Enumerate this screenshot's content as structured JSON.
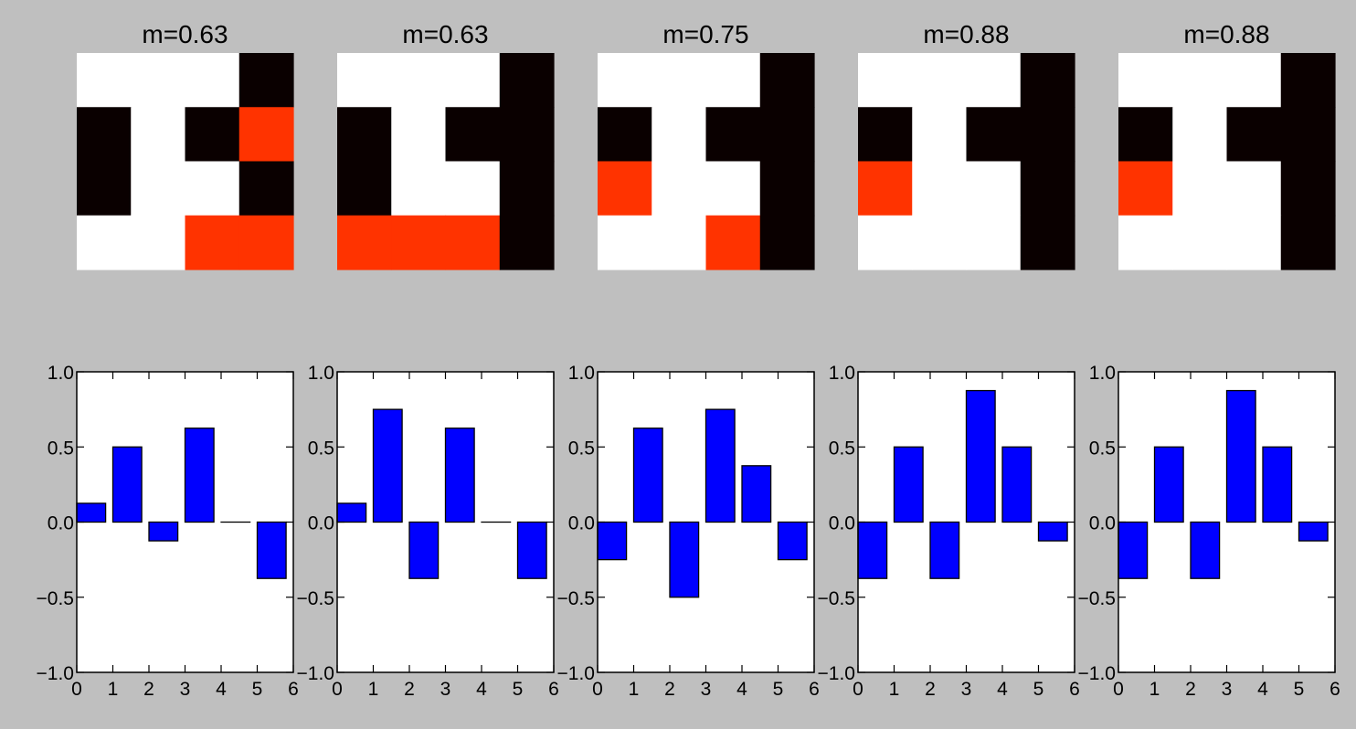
{
  "colors": {
    "figure_bg": "#bfbfbf",
    "white": "#ffffff",
    "black": "#0a0000",
    "red": "#ff3300",
    "bar": "#0000ff"
  },
  "chart_data": [
    {
      "type": "heatmap",
      "title": "m=0.63",
      "grid": [
        [
          "w",
          "w",
          "w",
          "k"
        ],
        [
          "k",
          "w",
          "k",
          "r"
        ],
        [
          "k",
          "w",
          "w",
          "k"
        ],
        [
          "w",
          "w",
          "r",
          "r"
        ]
      ]
    },
    {
      "type": "heatmap",
      "title": "m=0.63",
      "grid": [
        [
          "w",
          "w",
          "w",
          "k"
        ],
        [
          "k",
          "w",
          "k",
          "k"
        ],
        [
          "k",
          "w",
          "w",
          "k"
        ],
        [
          "r",
          "r",
          "r",
          "k"
        ]
      ]
    },
    {
      "type": "heatmap",
      "title": "m=0.75",
      "grid": [
        [
          "w",
          "w",
          "w",
          "k"
        ],
        [
          "k",
          "w",
          "k",
          "k"
        ],
        [
          "r",
          "w",
          "w",
          "k"
        ],
        [
          "w",
          "w",
          "r",
          "k"
        ]
      ]
    },
    {
      "type": "heatmap",
      "title": "m=0.88",
      "grid": [
        [
          "w",
          "w",
          "w",
          "k"
        ],
        [
          "k",
          "w",
          "k",
          "k"
        ],
        [
          "r",
          "w",
          "w",
          "k"
        ],
        [
          "w",
          "w",
          "w",
          "k"
        ]
      ]
    },
    {
      "type": "heatmap",
      "title": "m=0.88",
      "grid": [
        [
          "w",
          "w",
          "w",
          "k"
        ],
        [
          "k",
          "w",
          "k",
          "k"
        ],
        [
          "r",
          "w",
          "w",
          "k"
        ],
        [
          "w",
          "w",
          "w",
          "k"
        ]
      ]
    },
    {
      "type": "bar",
      "categories": [
        0,
        1,
        2,
        3,
        4,
        5
      ],
      "values": [
        0.125,
        0.5,
        -0.125,
        0.625,
        0.0,
        -0.375
      ],
      "xlim": [
        0,
        6
      ],
      "ylim": [
        -1,
        1
      ],
      "xticks": [
        "0",
        "1",
        "2",
        "3",
        "4",
        "5",
        "6"
      ],
      "yticks": [
        "1.0",
        "0.5",
        "0.0",
        "−0.5",
        "−1.0"
      ],
      "ytick_values": [
        1.0,
        0.5,
        0.0,
        -0.5,
        -1.0
      ]
    },
    {
      "type": "bar",
      "categories": [
        0,
        1,
        2,
        3,
        4,
        5
      ],
      "values": [
        0.125,
        0.75,
        -0.375,
        0.625,
        0.0,
        -0.375
      ],
      "xlim": [
        0,
        6
      ],
      "ylim": [
        -1,
        1
      ],
      "xticks": [
        "0",
        "1",
        "2",
        "3",
        "4",
        "5",
        "6"
      ],
      "yticks": [
        "1.0",
        "0.5",
        "0.0",
        "−0.5",
        "−1.0"
      ],
      "ytick_values": [
        1.0,
        0.5,
        0.0,
        -0.5,
        -1.0
      ]
    },
    {
      "type": "bar",
      "categories": [
        0,
        1,
        2,
        3,
        4,
        5
      ],
      "values": [
        -0.25,
        0.625,
        -0.5,
        0.75,
        0.375,
        -0.25
      ],
      "xlim": [
        0,
        6
      ],
      "ylim": [
        -1,
        1
      ],
      "xticks": [
        "0",
        "1",
        "2",
        "3",
        "4",
        "5",
        "6"
      ],
      "yticks": [
        "1.0",
        "0.5",
        "0.0",
        "−0.5",
        "−1.0"
      ],
      "ytick_values": [
        1.0,
        0.5,
        0.0,
        -0.5,
        -1.0
      ]
    },
    {
      "type": "bar",
      "categories": [
        0,
        1,
        2,
        3,
        4,
        5
      ],
      "values": [
        -0.375,
        0.5,
        -0.375,
        0.875,
        0.5,
        -0.125
      ],
      "xlim": [
        0,
        6
      ],
      "ylim": [
        -1,
        1
      ],
      "xticks": [
        "0",
        "1",
        "2",
        "3",
        "4",
        "5",
        "6"
      ],
      "yticks": [
        "1.0",
        "0.5",
        "0.0",
        "−0.5",
        "−1.0"
      ],
      "ytick_values": [
        1.0,
        0.5,
        0.0,
        -0.5,
        -1.0
      ]
    },
    {
      "type": "bar",
      "categories": [
        0,
        1,
        2,
        3,
        4,
        5
      ],
      "values": [
        -0.375,
        0.5,
        -0.375,
        0.875,
        0.5,
        -0.125
      ],
      "xlim": [
        0,
        6
      ],
      "ylim": [
        -1,
        1
      ],
      "xticks": [
        "0",
        "1",
        "2",
        "3",
        "4",
        "5",
        "6"
      ],
      "yticks": [
        "1.0",
        "0.5",
        "0.0",
        "−0.5",
        "−1.0"
      ],
      "ytick_values": [
        1.0,
        0.5,
        0.0,
        -0.5,
        -1.0
      ]
    }
  ]
}
